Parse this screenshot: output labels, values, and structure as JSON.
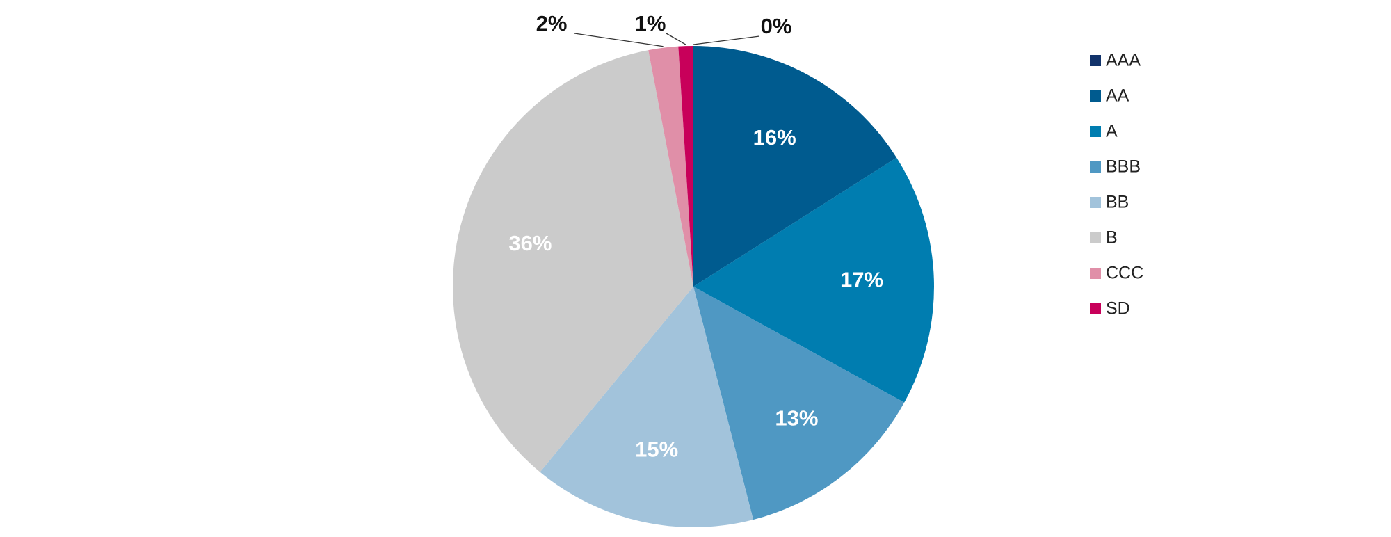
{
  "chart_data": {
    "type": "pie",
    "categories": [
      "AAA",
      "AA",
      "A",
      "BBB",
      "BB",
      "B",
      "CCC",
      "SD"
    ],
    "values": [
      0,
      16,
      17,
      13,
      15,
      36,
      2,
      1
    ],
    "value_labels": [
      "0%",
      "16%",
      "17%",
      "13%",
      "15%",
      "36%",
      "2%",
      "1%"
    ],
    "colors": [
      "#12336b",
      "#005b8f",
      "#007db0",
      "#4f98c3",
      "#a2c3db",
      "#cbcbcb",
      "#e08fa8",
      "#c8005a"
    ],
    "legend": "right"
  }
}
